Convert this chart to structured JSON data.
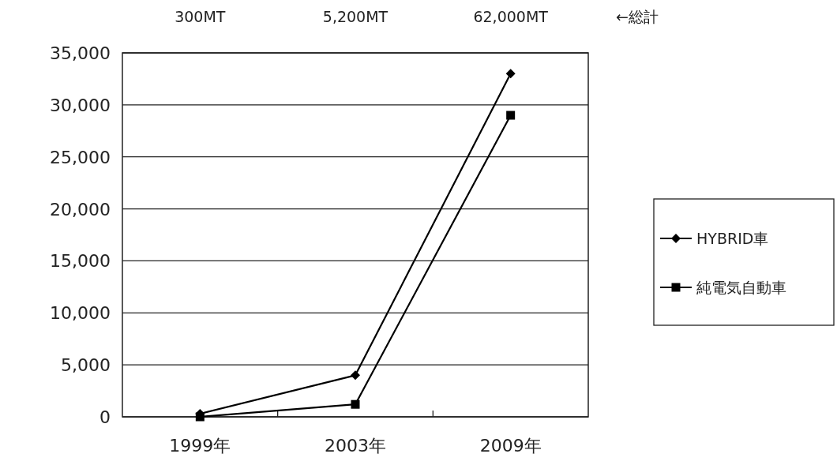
{
  "chart_data": {
    "type": "line",
    "categories": [
      "1999年",
      "2003年",
      "2009年"
    ],
    "series": [
      {
        "name": "HYBRID車",
        "color": "#000000",
        "marker": "diamond",
        "values": [
          300,
          4000,
          33000
        ]
      },
      {
        "name": "純電気自動車",
        "color": "#000000",
        "marker": "square",
        "values": [
          0,
          1200,
          29000
        ]
      }
    ],
    "ylim": [
      0,
      35000
    ],
    "yticks": [
      {
        "value": 0,
        "label": "0"
      },
      {
        "value": 5000,
        "label": "5,000"
      },
      {
        "value": 10000,
        "label": "10,000"
      },
      {
        "value": 15000,
        "label": "15,000"
      },
      {
        "value": 20000,
        "label": "20,000"
      },
      {
        "value": 25000,
        "label": "25,000"
      },
      {
        "value": 30000,
        "label": "30,000"
      },
      {
        "value": 35000,
        "label": "35,000"
      }
    ],
    "grid": "y",
    "legend": "right",
    "line_style": "solid",
    "annotations": [
      "300MT",
      "5,200MT",
      "62,000MT",
      "←総計"
    ]
  }
}
